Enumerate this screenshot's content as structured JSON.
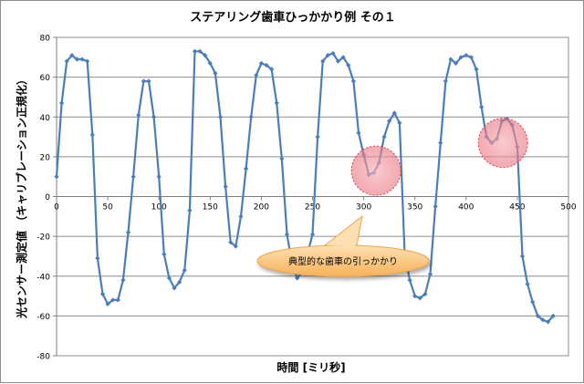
{
  "chart_data": {
    "type": "line",
    "title": "ステアリング歯車ひっかかり例 その１",
    "xlabel": "時間 [ミリ秒]",
    "ylabel": "光センサー測定値 （キャリブレーション正規化）",
    "xlim": [
      0,
      500
    ],
    "ylim": [
      -80,
      80
    ],
    "xticks": [
      0,
      50,
      100,
      150,
      200,
      250,
      300,
      350,
      400,
      450,
      500
    ],
    "yticks": [
      -80,
      -60,
      -40,
      -20,
      0,
      20,
      40,
      60,
      80
    ],
    "grid": true,
    "series": [
      {
        "name": "光センサー測定値",
        "color": "#4a7ebb",
        "x": [
          0,
          5,
          10,
          15,
          20,
          25,
          30,
          35,
          40,
          45,
          50,
          55,
          60,
          65,
          70,
          75,
          80,
          85,
          90,
          95,
          100,
          105,
          110,
          115,
          120,
          125,
          130,
          135,
          140,
          145,
          150,
          155,
          160,
          165,
          170,
          175,
          180,
          185,
          190,
          195,
          200,
          205,
          210,
          215,
          220,
          225,
          230,
          235,
          240,
          245,
          250,
          255,
          260,
          265,
          270,
          275,
          280,
          285,
          290,
          295,
          300,
          305,
          310,
          315,
          320,
          325,
          330,
          335,
          340,
          345,
          350,
          355,
          360,
          365,
          370,
          375,
          380,
          385,
          390,
          395,
          400,
          405,
          410,
          415,
          420,
          425,
          430,
          435,
          440,
          445,
          450,
          455,
          460,
          465,
          470,
          475,
          480,
          485
        ],
        "y": [
          10,
          47,
          68,
          71,
          69,
          69,
          68,
          31,
          -31,
          -49,
          -54,
          -52,
          -52,
          -42,
          -18,
          10,
          41,
          58,
          58,
          40,
          10,
          -29,
          -41,
          -46,
          -43,
          -37,
          -7,
          73,
          73,
          71,
          67,
          62,
          40,
          5,
          -23,
          -25,
          -10,
          14,
          40,
          61,
          67,
          66,
          64,
          47,
          19,
          -19,
          -34,
          -41,
          -38,
          -29,
          -19,
          30,
          68,
          71,
          72,
          68,
          70,
          66,
          58,
          32,
          21,
          11,
          12,
          17,
          30,
          38,
          42,
          37,
          -29,
          -42,
          -50,
          -51,
          -49,
          -39,
          -5,
          27,
          58,
          69,
          67,
          70,
          71,
          70,
          64,
          45,
          30,
          27,
          29,
          38,
          39,
          36,
          25,
          -30,
          -44,
          -53,
          -60,
          -62,
          -63,
          -60
        ]
      }
    ],
    "annotations": [
      {
        "type": "circle",
        "x": 312,
        "y": 13,
        "note": "pink highlight"
      },
      {
        "type": "circle",
        "x": 436,
        "y": 27,
        "note": "pink highlight"
      },
      {
        "type": "callout",
        "text": "典型的な歯車の引っかかり"
      }
    ]
  }
}
